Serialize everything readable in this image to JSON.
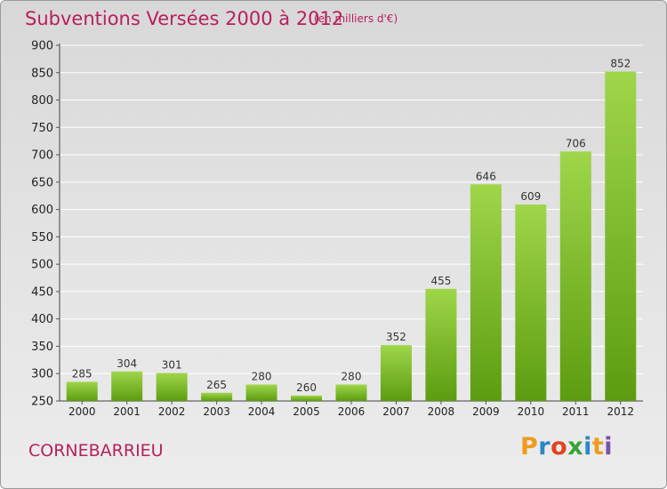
{
  "title": "Subventions Versées 2000 à 2012",
  "unit_note": "(en milliers d'€)",
  "commune": "CORNEBARRIEU",
  "logo": {
    "text": "Proxiti",
    "letters": [
      "P",
      "r",
      "o",
      "x",
      "i",
      "t",
      "i"
    ]
  },
  "colors": {
    "title": "#b81f5c",
    "bar_top": "#9fd64a",
    "bar_bottom": "#5c9c10",
    "grid": "#ffffff"
  },
  "chart_data": {
    "type": "bar",
    "categories": [
      "2000",
      "2001",
      "2002",
      "2003",
      "2004",
      "2005",
      "2006",
      "2007",
      "2008",
      "2009",
      "2010",
      "2011",
      "2012"
    ],
    "values": [
      285,
      304,
      301,
      265,
      280,
      260,
      280,
      352,
      455,
      646,
      609,
      706,
      852
    ],
    "data_labels": [
      "285",
      "304",
      "301",
      "265",
      "280",
      "260",
      "280",
      "352",
      "455",
      "646",
      "609",
      "706",
      "852"
    ],
    "y_ticks": [
      "250",
      "300",
      "350",
      "400",
      "450",
      "500",
      "550",
      "600",
      "650",
      "700",
      "750",
      "800",
      "850",
      "900"
    ],
    "ylim": [
      250,
      900
    ],
    "grid": true
  }
}
